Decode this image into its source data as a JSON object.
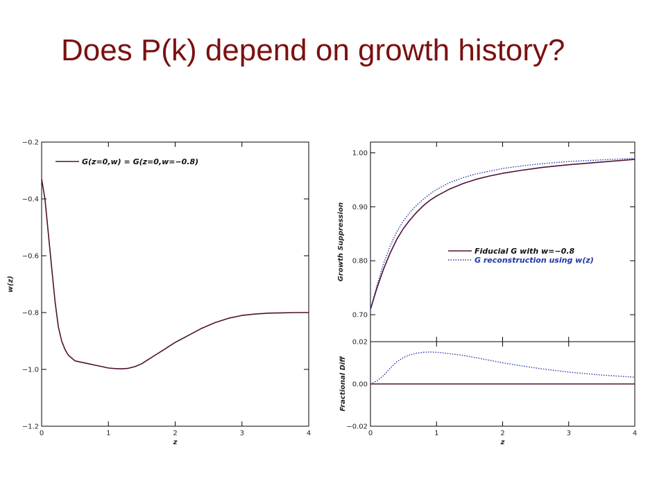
{
  "slide": {
    "title": "Does P(k) depend on growth history?"
  },
  "colors": {
    "title": "#7b1010",
    "solid": "#4b1030",
    "dotted": "#2233aa",
    "axis": "#000000"
  },
  "chart_data": [
    {
      "type": "line",
      "xlabel": "z",
      "ylabel": "w(z)",
      "xlim": [
        0,
        4
      ],
      "ylim": [
        -1.2,
        -0.2
      ],
      "xticks": [
        "0",
        "1",
        "2",
        "3",
        "4"
      ],
      "yticks": [
        "−1.2",
        "−1.0",
        "−0.8",
        "−0.6",
        "−0.4",
        "−0.2"
      ],
      "legend_location": "top-left",
      "series": [
        {
          "name": "G(z=0,w) = G(z=0,w=−0.8)",
          "style": "solid",
          "x": [
            0,
            0.05,
            0.1,
            0.15,
            0.2,
            0.25,
            0.3,
            0.35,
            0.4,
            0.45,
            0.5,
            0.6,
            0.7,
            0.8,
            0.9,
            1.0,
            1.1,
            1.2,
            1.3,
            1.4,
            1.5,
            1.6,
            1.7,
            1.8,
            1.9,
            2.0,
            2.2,
            2.4,
            2.6,
            2.8,
            3.0,
            3.2,
            3.4,
            3.6,
            3.8,
            4.0
          ],
          "y": [
            -0.33,
            -0.4,
            -0.52,
            -0.64,
            -0.76,
            -0.85,
            -0.9,
            -0.93,
            -0.95,
            -0.96,
            -0.97,
            -0.975,
            -0.98,
            -0.985,
            -0.99,
            -0.995,
            -0.997,
            -0.998,
            -0.996,
            -0.99,
            -0.98,
            -0.965,
            -0.95,
            -0.935,
            -0.92,
            -0.905,
            -0.88,
            -0.855,
            -0.835,
            -0.82,
            -0.81,
            -0.805,
            -0.802,
            -0.801,
            -0.8,
            -0.8
          ]
        }
      ]
    },
    {
      "type": "line",
      "xlabel": "",
      "ylabel": "Growth Suppression",
      "xlim": [
        0,
        4
      ],
      "ylim": [
        0.65,
        1.02
      ],
      "yticks": [
        "0.70",
        "0.80",
        "0.90",
        "1.00"
      ],
      "legend_location": "middle-right",
      "series": [
        {
          "name": "Fiducial G with w=−0.8",
          "style": "solid",
          "x": [
            0,
            0.1,
            0.2,
            0.3,
            0.4,
            0.5,
            0.6,
            0.7,
            0.8,
            0.9,
            1.0,
            1.2,
            1.4,
            1.6,
            1.8,
            2.0,
            2.3,
            2.6,
            3.0,
            3.5,
            4.0
          ],
          "y": [
            0.71,
            0.75,
            0.785,
            0.815,
            0.84,
            0.86,
            0.876,
            0.89,
            0.902,
            0.912,
            0.92,
            0.933,
            0.943,
            0.951,
            0.957,
            0.962,
            0.968,
            0.973,
            0.978,
            0.983,
            0.988
          ]
        },
        {
          "name": "G reconstruction using w(z)",
          "style": "dotted",
          "x": [
            0,
            0.1,
            0.2,
            0.3,
            0.4,
            0.5,
            0.6,
            0.7,
            0.8,
            0.9,
            1.0,
            1.2,
            1.4,
            1.6,
            1.8,
            2.0,
            2.3,
            2.6,
            3.0,
            3.5,
            4.0
          ],
          "y": [
            0.71,
            0.755,
            0.795,
            0.828,
            0.854,
            0.874,
            0.89,
            0.903,
            0.914,
            0.924,
            0.932,
            0.945,
            0.954,
            0.961,
            0.966,
            0.971,
            0.976,
            0.98,
            0.984,
            0.987,
            0.99
          ]
        }
      ]
    },
    {
      "type": "line",
      "xlabel": "z",
      "ylabel": "Fractional Diff",
      "xlim": [
        0,
        4
      ],
      "ylim": [
        -0.02,
        0.02
      ],
      "xticks": [
        "0",
        "1",
        "2",
        "3",
        "4"
      ],
      "yticks": [
        "−0.02",
        "0.00",
        "0.02"
      ],
      "series": [
        {
          "name": "Fiducial G with w=−0.8",
          "style": "solid",
          "x": [
            0,
            4
          ],
          "y": [
            0,
            0
          ]
        },
        {
          "name": "G reconstruction using w(z)",
          "style": "dotted",
          "x": [
            0,
            0.1,
            0.2,
            0.3,
            0.4,
            0.5,
            0.6,
            0.7,
            0.8,
            0.9,
            1.0,
            1.1,
            1.2,
            1.4,
            1.6,
            1.8,
            2.0,
            2.3,
            2.6,
            3.0,
            3.5,
            4.0
          ],
          "y": [
            0.0,
            0.0015,
            0.004,
            0.0075,
            0.0105,
            0.0125,
            0.0138,
            0.0146,
            0.015,
            0.0151,
            0.015,
            0.0147,
            0.0143,
            0.0135,
            0.0124,
            0.0112,
            0.01,
            0.0085,
            0.0071,
            0.0056,
            0.0042,
            0.0032
          ]
        }
      ]
    }
  ]
}
